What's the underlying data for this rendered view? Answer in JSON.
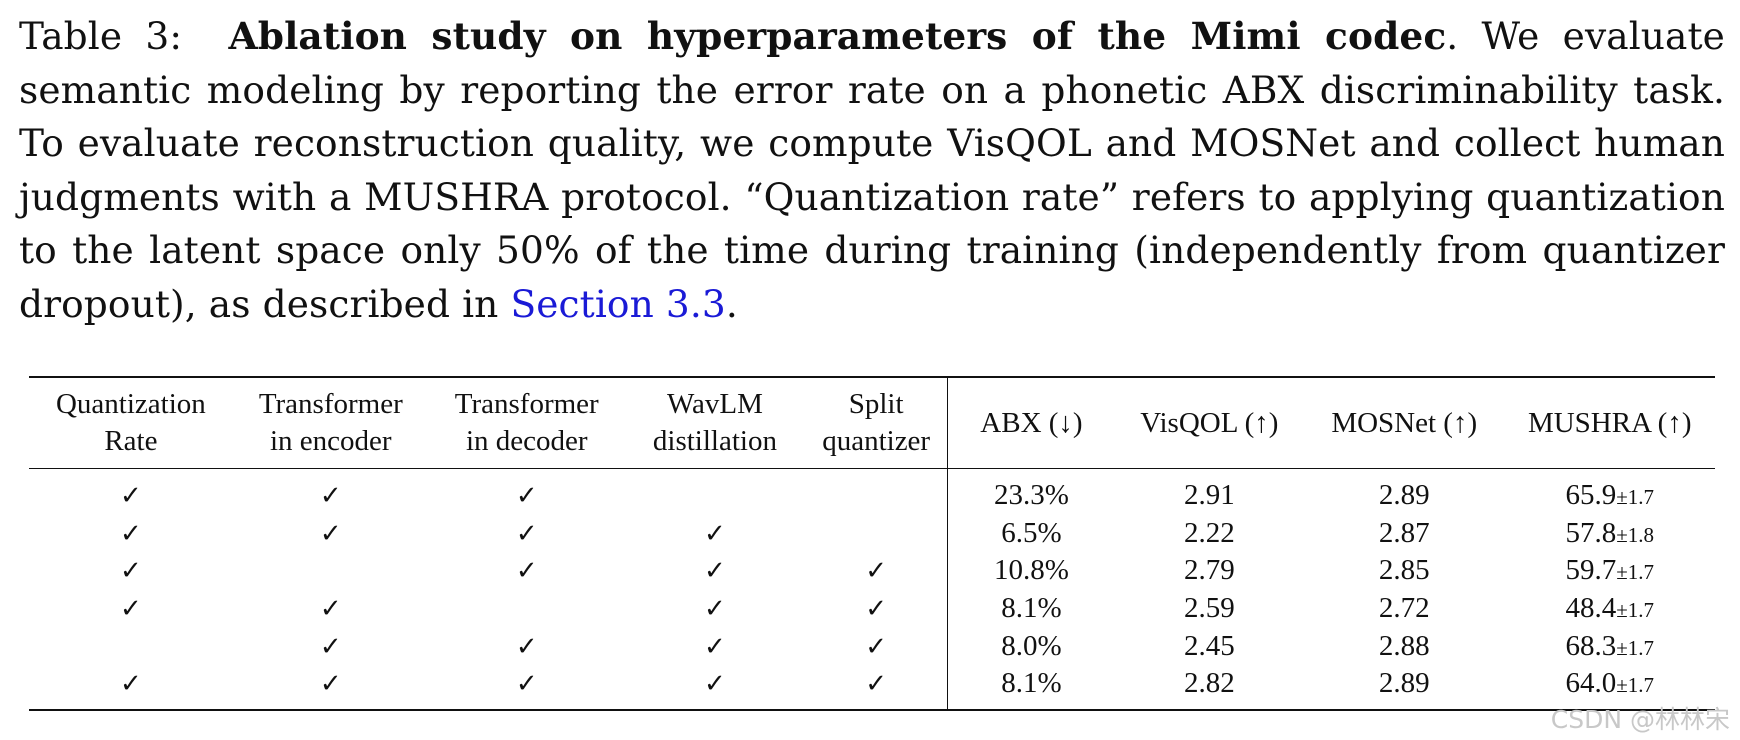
{
  "caption": {
    "label": "Table 3:",
    "bold_title": "Ablation study on hyperparameters of the Mimi codec",
    "text_after_title": ". We evaluate semantic modeling by reporting the error rate on a phonetic ABX discriminability task. To evaluate reconstruction quality, we compute VisQOL and MOSNet and collect human judgments with a MUSHRA protocol. “Quantization rate” refers to applying quantization to the latent space only 50% of the time during training (independently from quantizer dropout), as described in ",
    "link_text": "Section  3.3",
    "end": "."
  },
  "table": {
    "headers": [
      [
        "Quantization",
        "Rate"
      ],
      [
        "Transformer",
        "in encoder"
      ],
      [
        "Transformer",
        "in decoder"
      ],
      [
        "WavLM",
        "distillation"
      ],
      [
        "Split",
        "quantizer"
      ],
      [
        "ABX (↓)"
      ],
      [
        "VisQOL (↑)"
      ],
      [
        "MOSNet (↑)"
      ],
      [
        "MUSHRA (↑)"
      ]
    ],
    "check_symbol": "✓",
    "rows": [
      {
        "checks": [
          true,
          true,
          true,
          false,
          false
        ],
        "abx": "23.3%",
        "visqol": "2.91",
        "mosnet": "2.89",
        "mushra": "65.9",
        "mushra_pm": "±1.7"
      },
      {
        "checks": [
          true,
          true,
          true,
          true,
          false
        ],
        "abx": "6.5%",
        "visqol": "2.22",
        "mosnet": "2.87",
        "mushra": "57.8",
        "mushra_pm": "±1.8"
      },
      {
        "checks": [
          true,
          false,
          true,
          true,
          true
        ],
        "abx": "10.8%",
        "visqol": "2.79",
        "mosnet": "2.85",
        "mushra": "59.7",
        "mushra_pm": "±1.7"
      },
      {
        "checks": [
          true,
          true,
          false,
          true,
          true
        ],
        "abx": "8.1%",
        "visqol": "2.59",
        "mosnet": "2.72",
        "mushra": "48.4",
        "mushra_pm": "±1.7"
      },
      {
        "checks": [
          false,
          true,
          true,
          true,
          true
        ],
        "abx": "8.0%",
        "visqol": "2.45",
        "mosnet": "2.88",
        "mushra": "68.3",
        "mushra_pm": "±1.7"
      },
      {
        "checks": [
          true,
          true,
          true,
          true,
          true
        ],
        "abx": "8.1%",
        "visqol": "2.82",
        "mosnet": "2.89",
        "mushra": "64.0",
        "mushra_pm": "±1.7"
      }
    ]
  },
  "watermark": "CSDN @林林宋"
}
